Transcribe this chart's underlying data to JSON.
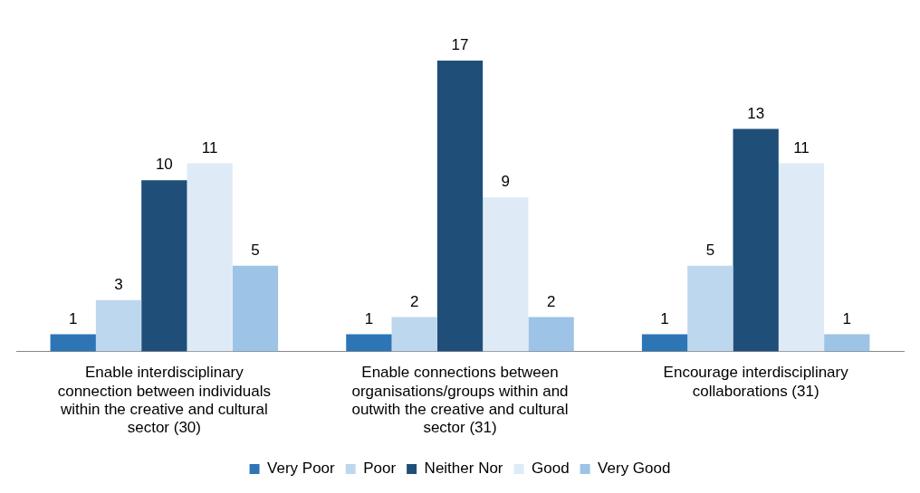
{
  "chart_data": {
    "type": "bar",
    "categories": [
      "Enable interdisciplinary connection between individuals within the creative and cultural sector (30)",
      "Enable connections between organisations/groups within and outwith the creative and cultural sector (31)",
      "Encourage interdisciplinary collaborations (31)"
    ],
    "series": [
      {
        "name": "Very Poor",
        "color": "#2e75b6",
        "values": [
          1,
          1,
          1
        ]
      },
      {
        "name": "Poor",
        "color": "#bdd7ee",
        "values": [
          3,
          2,
          5
        ]
      },
      {
        "name": "Neither Nor",
        "color": "#1f4e79",
        "values": [
          10,
          17,
          13
        ]
      },
      {
        "name": "Good",
        "color": "#deebf7",
        "values": [
          11,
          9,
          11
        ]
      },
      {
        "name": "Very Good",
        "color": "#9dc3e6",
        "values": [
          5,
          2,
          1
        ]
      }
    ],
    "data_labels": true,
    "legend": "bottom",
    "grid": false,
    "tick_labels": "x"
  }
}
